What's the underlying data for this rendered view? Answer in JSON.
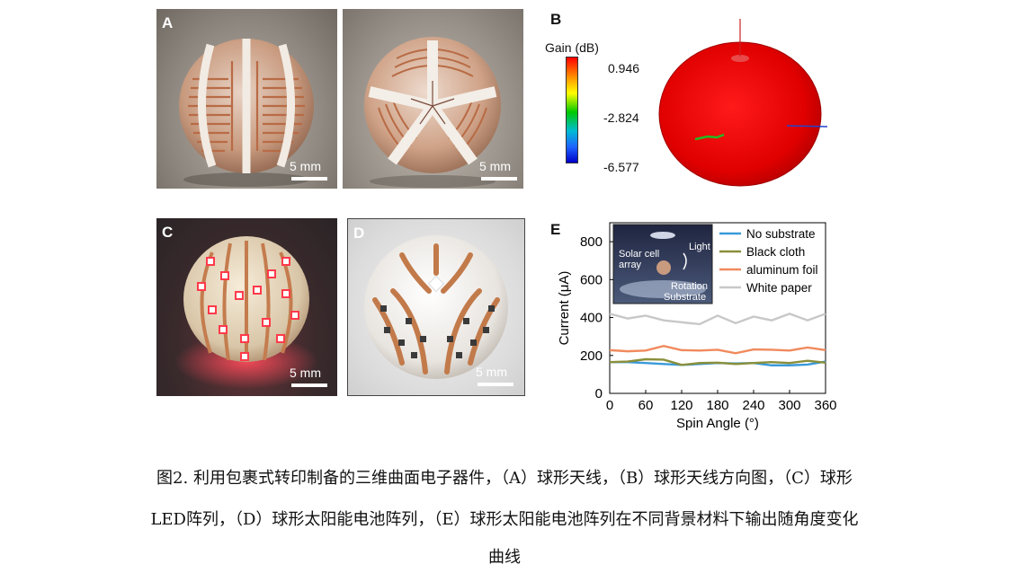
{
  "panels": {
    "a": {
      "letter": "A",
      "scale_label": "5 mm",
      "scale_label_2": "5 mm"
    },
    "b": {
      "letter": "B",
      "colorbar_title": "Gain (dB)",
      "colorbar_ticks": [
        "0.946",
        "-2.824",
        "-6.577"
      ],
      "colorbar_colors": [
        "#ff0000",
        "#ff8c00",
        "#ffff00",
        "#00c800",
        "#00bcd4",
        "#1e64ff",
        "#0000c8"
      ]
    },
    "c": {
      "letter": "C",
      "scale_label": "5 mm"
    },
    "d": {
      "letter": "D",
      "scale_label": "5 mm"
    },
    "e": {
      "letter": "E"
    }
  },
  "chart_data": {
    "type": "line",
    "xlabel": "Spin Angle (°)",
    "ylabel": "Current (μA)",
    "xlim": [
      0,
      360
    ],
    "ylim": [
      0,
      900
    ],
    "xticks": [
      "0",
      "60",
      "120",
      "180",
      "240",
      "300",
      "360"
    ],
    "yticks": [
      "0",
      "200",
      "400",
      "600",
      "800"
    ],
    "x": [
      0,
      30,
      60,
      90,
      120,
      150,
      180,
      210,
      240,
      270,
      300,
      330,
      360
    ],
    "series": [
      {
        "name": "No substrate",
        "color": "#3a9ad9",
        "values": [
          165,
          165,
          160,
          155,
          150,
          155,
          160,
          158,
          160,
          148,
          148,
          152,
          168
        ]
      },
      {
        "name": "Black cloth",
        "color": "#8a8f3a",
        "values": [
          165,
          168,
          180,
          178,
          150,
          160,
          162,
          155,
          160,
          165,
          160,
          172,
          162
        ]
      },
      {
        "name": "aluminum foil",
        "color": "#f08a5d",
        "values": [
          228,
          222,
          226,
          250,
          228,
          226,
          230,
          212,
          232,
          230,
          226,
          242,
          228
        ]
      },
      {
        "name": "White paper",
        "color": "#c8c8c8",
        "values": [
          420,
          395,
          410,
          385,
          375,
          365,
          410,
          370,
          405,
          385,
          420,
          385,
          420
        ]
      }
    ],
    "inset_labels": [
      "Light",
      "Solar cell array",
      "Rotation",
      "Substrate"
    ]
  },
  "caption": {
    "line1": "图2. 利用包裹式转印制备的三维曲面电子器件，（A）球形天线，（B）球形天线方向图，（C）球形",
    "line2": "LED阵列，（D）球形太阳能电池阵列，（E）球形太阳能电池阵列在不同背景材料下输出随角度变化",
    "line3": "曲线"
  }
}
